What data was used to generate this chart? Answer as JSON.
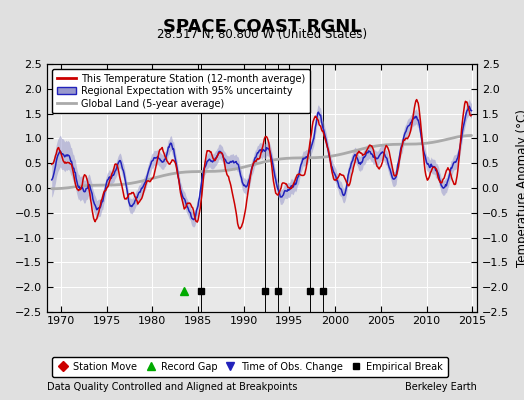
{
  "title": "SPACE COAST RGNL",
  "subtitle": "28.517 N, 80.800 W (United States)",
  "ylabel": "Temperature Anomaly (°C)",
  "xlabel_left": "Data Quality Controlled and Aligned at Breakpoints",
  "xlabel_right": "Berkeley Earth",
  "ylim": [
    -2.5,
    2.5
  ],
  "xlim": [
    1968.5,
    2015.5
  ],
  "yticks": [
    -2.5,
    -2,
    -1.5,
    -1,
    -0.5,
    0,
    0.5,
    1,
    1.5,
    2,
    2.5
  ],
  "xticks": [
    1970,
    1975,
    1980,
    1985,
    1990,
    1995,
    2000,
    2005,
    2010,
    2015
  ],
  "bg_color": "#e0e0e0",
  "plot_bg_color": "#e8e8e8",
  "station_color": "#cc0000",
  "regional_color": "#2222bb",
  "regional_fill_color": "#9999cc",
  "global_color": "#aaaaaa",
  "legend_station": "This Temperature Station (12-month average)",
  "legend_regional": "Regional Expectation with 95% uncertainty",
  "legend_global": "Global Land (5-year average)",
  "record_gap_x": [
    1983.5
  ],
  "empirical_break_x": [
    1985.3,
    1992.3,
    1993.7,
    1997.3,
    1998.7
  ],
  "vline_x": [
    1985.3,
    1992.3,
    1993.7,
    1997.3,
    1998.7
  ]
}
